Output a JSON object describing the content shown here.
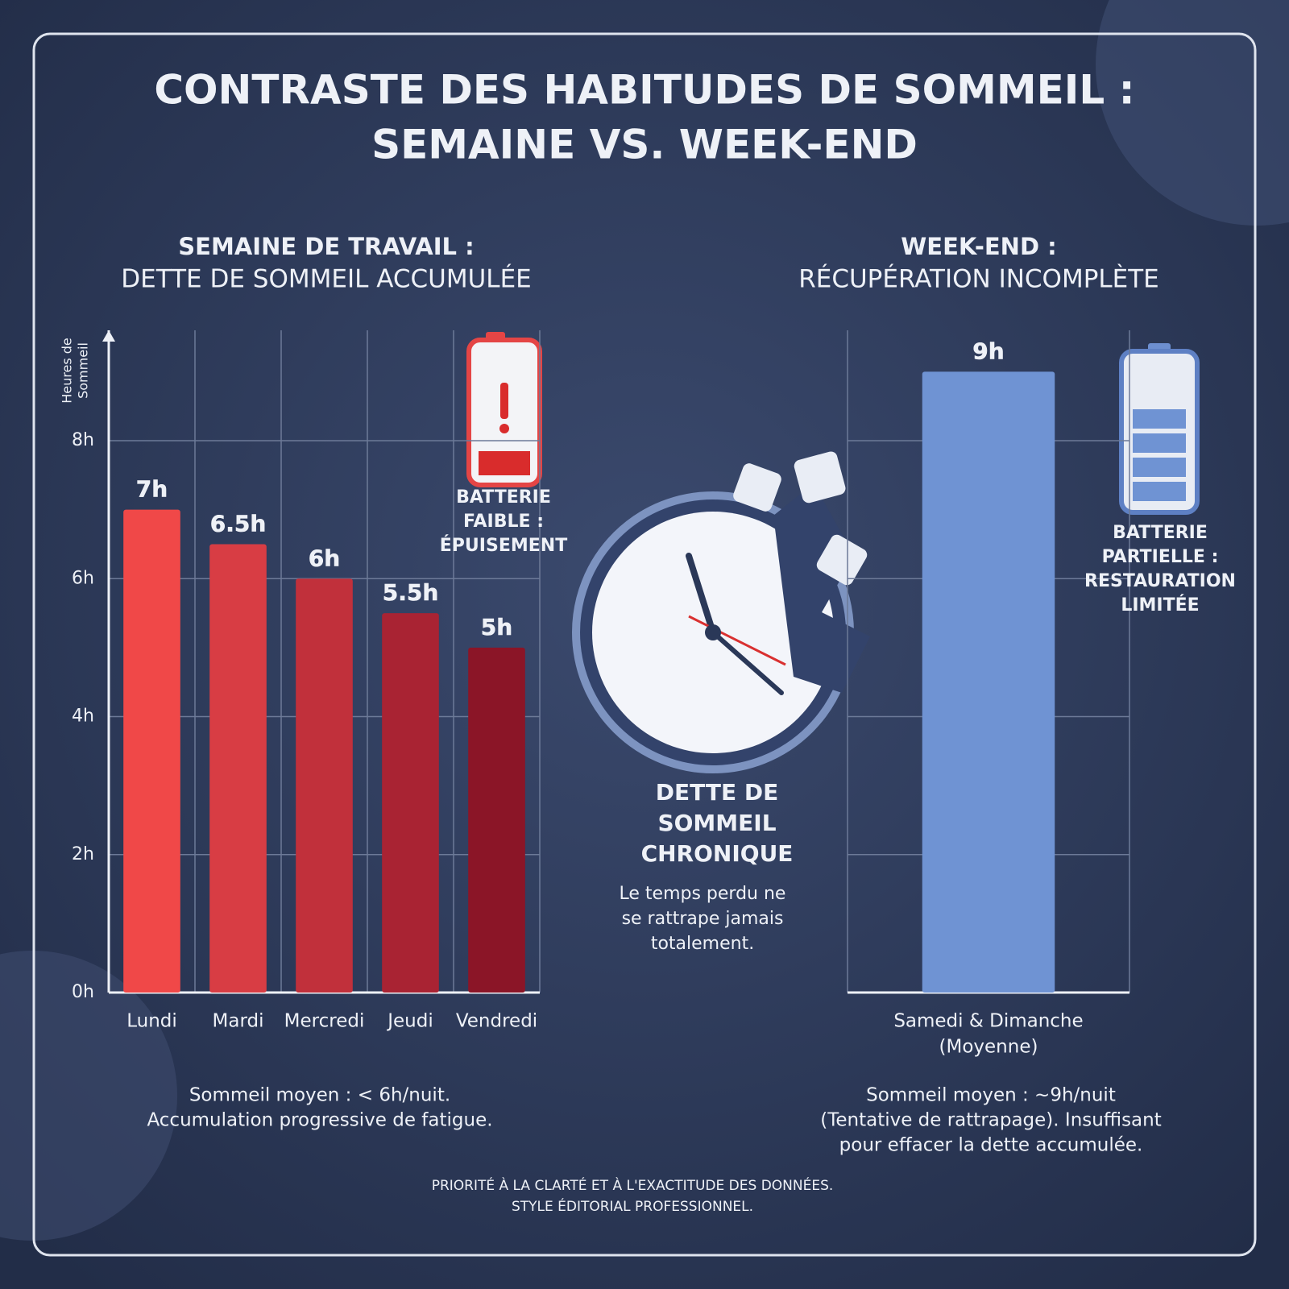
{
  "title": [
    "CONTRASTE DES HABITUDES DE SOMMEIL :",
    "SEMAINE VS. WEEK-END"
  ],
  "chart_data": [
    {
      "type": "bar",
      "title": "SEMAINE DE TRAVAIL :",
      "subtitle": "DETTE DE SOMMEIL ACCUMULÉE",
      "y_label": [
        "Heures de",
        "Sommeil"
      ],
      "categories": [
        "Lundi",
        "Mardi",
        "Mercredi",
        "Jeudi",
        "Vendredi"
      ],
      "values": [
        7,
        6.5,
        6,
        5.5,
        5
      ],
      "value_labels": [
        "7h",
        "6.5h",
        "6h",
        "5.5h",
        "5h"
      ],
      "colors": [
        "#f04848",
        "#d83d44",
        "#c1303b",
        "#a92333",
        "#8b1527"
      ],
      "ylim": [
        0,
        9.6
      ],
      "yticks": [
        {
          "value": 0,
          "label": "0h"
        },
        {
          "value": 2,
          "label": "2h"
        },
        {
          "value": 4,
          "label": "4h"
        },
        {
          "value": 6,
          "label": "6h"
        },
        {
          "value": 8,
          "label": "8h"
        }
      ],
      "grid": true,
      "badge": [
        "BATTERIE",
        "FAIBLE :",
        "ÉPUISEMENT"
      ],
      "note": [
        "Sommeil moyen : < 6h/nuit.",
        "Accumulation progressive de fatigue."
      ]
    },
    {
      "type": "bar",
      "title": "WEEK-END :",
      "subtitle": "RÉCUPÉRATION INCOMPLÈTE",
      "categories": [
        "Samedi & Dimanche"
      ],
      "category_note": "(Moyenne)",
      "values": [
        9
      ],
      "value_labels": [
        "9h"
      ],
      "colors": [
        "#6f93d3"
      ],
      "ylim": [
        0,
        9.6
      ],
      "grid": true,
      "badge": [
        "BATTERIE",
        "PARTIELLE :",
        "RESTAURATION",
        "LIMITÉE"
      ],
      "note": [
        "Sommeil moyen : ~9h/nuit",
        "(Tentative de rattrapage). Insuffisant",
        "pour effacer la dette accumulée."
      ]
    }
  ],
  "center": {
    "title": [
      "DETTE DE",
      "SOMMEIL",
      "CHRONIQUE"
    ],
    "text": [
      "Le temps perdu ne",
      "se rattrape jamais",
      "totalement."
    ]
  },
  "footer": [
    "PRIORITÉ À LA CLARTÉ ET À L'EXACTITUDE DES DONNÉES.",
    "STYLE ÉDITORIAL PROFESSIONNEL."
  ]
}
